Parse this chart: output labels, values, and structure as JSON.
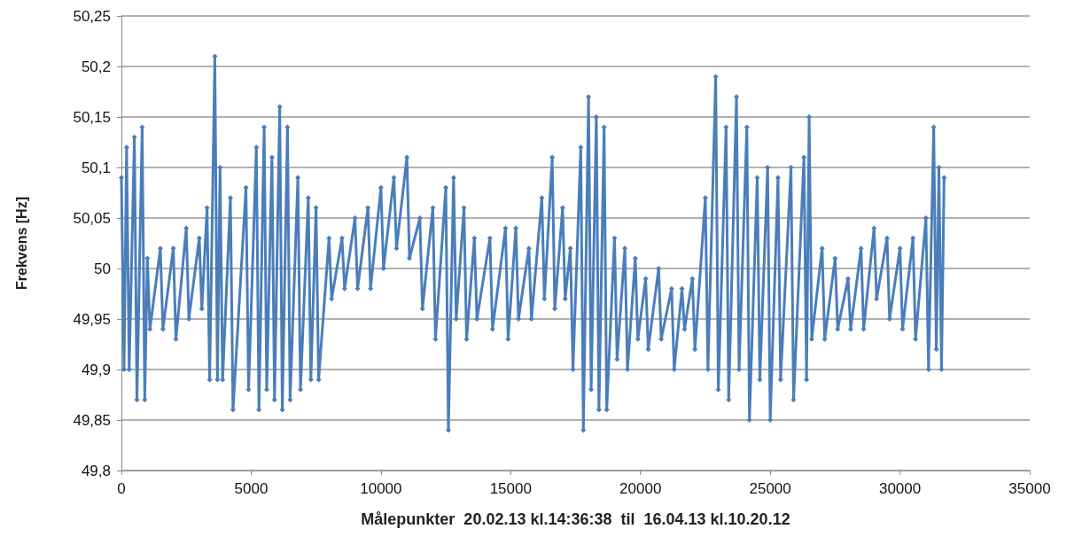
{
  "chart_data": {
    "type": "line",
    "xlabel": "Målepunkter  20.02.13 kl.14:36:38  til  16.04.13 kl.10.20.12",
    "ylabel": "Frekvens [Hz]",
    "xlim": [
      0,
      35000
    ],
    "xticks": [
      0,
      5000,
      10000,
      15000,
      20000,
      25000,
      30000,
      35000
    ],
    "ylim": [
      49.8,
      50.25
    ],
    "yticks": [
      {
        "value": 49.8,
        "label": "49,8"
      },
      {
        "value": 49.85,
        "label": "49,85"
      },
      {
        "value": 49.9,
        "label": "49,9"
      },
      {
        "value": 49.95,
        "label": "49,95"
      },
      {
        "value": 50,
        "label": "50"
      },
      {
        "value": 50.05,
        "label": "50,05"
      },
      {
        "value": 50.1,
        "label": "50,1"
      },
      {
        "value": 50.15,
        "label": "50,15"
      },
      {
        "value": 50.2,
        "label": "50,2"
      },
      {
        "value": 50.25,
        "label": "50,25"
      }
    ],
    "grid": "y",
    "marker": "diamond",
    "line_style": "solid",
    "series": [
      {
        "color": "#4a7ebb",
        "x": [
          0,
          100,
          200,
          300,
          500,
          600,
          800,
          900,
          1000,
          1100,
          1500,
          1600,
          2000,
          2100,
          2500,
          2600,
          3000,
          3100,
          3300,
          3400,
          3600,
          3700,
          3800,
          3900,
          4200,
          4300,
          4800,
          4900,
          5200,
          5300,
          5500,
          5600,
          5800,
          5900,
          6100,
          6200,
          6400,
          6500,
          6800,
          6900,
          7200,
          7300,
          7500,
          7600,
          8000,
          8100,
          8500,
          8600,
          9000,
          9100,
          9500,
          9600,
          10000,
          10100,
          10500,
          10600,
          11000,
          11100,
          11500,
          11600,
          12000,
          12100,
          12500,
          12600,
          12800,
          12900,
          13200,
          13300,
          13600,
          13700,
          14200,
          14300,
          14800,
          14900,
          15200,
          15300,
          15700,
          15800,
          16200,
          16300,
          16600,
          16700,
          17000,
          17100,
          17300,
          17400,
          17700,
          17800,
          18000,
          18100,
          18300,
          18400,
          18600,
          18700,
          19000,
          19100,
          19400,
          19500,
          19800,
          19900,
          20200,
          20300,
          20700,
          20800,
          21200,
          21300,
          21600,
          21700,
          22000,
          22100,
          22500,
          22600,
          22900,
          23000,
          23300,
          23400,
          23700,
          23800,
          24100,
          24200,
          24500,
          24600,
          24900,
          25000,
          25300,
          25400,
          25800,
          25900,
          26300,
          26400,
          26500,
          26600,
          27000,
          27100,
          27500,
          27600,
          28000,
          28100,
          28500,
          28600,
          29000,
          29100,
          29500,
          29600,
          30000,
          30100,
          30500,
          30600,
          31000,
          31100,
          31300,
          31400,
          31500,
          31600,
          31700
        ],
        "values": [
          50.09,
          49.9,
          50.12,
          49.9,
          50.13,
          49.87,
          50.14,
          49.87,
          50.01,
          49.94,
          50.02,
          49.94,
          50.02,
          49.93,
          50.04,
          49.95,
          50.03,
          49.96,
          50.06,
          49.89,
          50.21,
          49.89,
          50.1,
          49.89,
          50.07,
          49.86,
          50.08,
          49.88,
          50.12,
          49.86,
          50.14,
          49.88,
          50.11,
          49.87,
          50.16,
          49.86,
          50.14,
          49.87,
          50.09,
          49.88,
          50.07,
          49.89,
          50.06,
          49.89,
          50.03,
          49.97,
          50.03,
          49.98,
          50.05,
          49.98,
          50.06,
          49.98,
          50.08,
          50.0,
          50.09,
          50.02,
          50.11,
          50.01,
          50.05,
          49.96,
          50.06,
          49.93,
          50.08,
          49.84,
          50.09,
          49.95,
          50.06,
          49.93,
          50.03,
          49.95,
          50.03,
          49.94,
          50.04,
          49.93,
          50.04,
          49.95,
          50.02,
          49.95,
          50.07,
          49.97,
          50.11,
          49.96,
          50.06,
          49.97,
          50.02,
          49.9,
          50.12,
          49.84,
          50.17,
          49.88,
          50.15,
          49.86,
          50.14,
          49.86,
          50.03,
          49.91,
          50.02,
          49.9,
          50.01,
          49.93,
          49.99,
          49.92,
          50.0,
          49.93,
          49.98,
          49.9,
          49.98,
          49.94,
          49.99,
          49.92,
          50.07,
          49.9,
          50.19,
          49.88,
          50.14,
          49.87,
          50.17,
          49.9,
          50.14,
          49.85,
          50.09,
          49.89,
          50.1,
          49.85,
          50.09,
          49.89,
          50.1,
          49.87,
          50.11,
          49.89,
          50.15,
          49.93,
          50.02,
          49.93,
          50.01,
          49.94,
          49.99,
          49.94,
          50.02,
          49.94,
          50.04,
          49.97,
          50.03,
          49.95,
          50.02,
          49.94,
          50.03,
          49.93,
          50.05,
          49.9,
          50.14,
          49.92,
          50.1,
          49.9,
          50.09
        ]
      }
    ]
  }
}
